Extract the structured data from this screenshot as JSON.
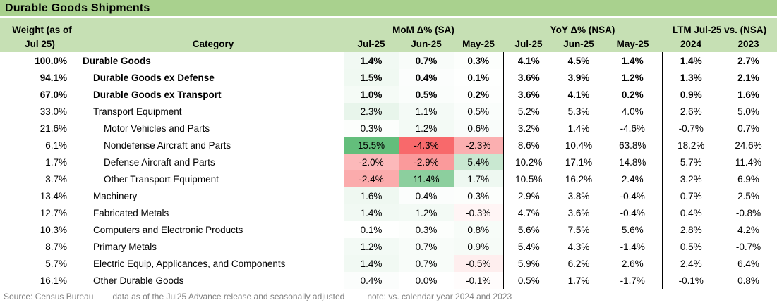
{
  "title": "Durable Goods Shipments",
  "colors": {
    "title_bg": "#A9D18E",
    "header_bg": "#C6E0B4",
    "footer_text": "#7F7F7F",
    "heat_max": "#63BE7B",
    "heat_mid": "#FFFFFF",
    "heat_min": "#F8696B"
  },
  "chart_data": {
    "type": "table",
    "title": "Durable Goods Shipments",
    "weight_header": [
      "Weight (as of",
      "Jul 25)"
    ],
    "category_header": "Category",
    "column_groups": [
      {
        "label": "MoM Δ% (SA)",
        "columns": [
          "Jul-25",
          "Jun-25",
          "May-25"
        ]
      },
      {
        "label": "YoY Δ% (NSA)",
        "columns": [
          "Jul-25",
          "Jun-25",
          "May-25"
        ]
      },
      {
        "label": "LTM Jul-25 vs. (NSA)",
        "columns": [
          "2024",
          "2023"
        ]
      }
    ],
    "heat_scale": {
      "applies_to": "MoM columns only",
      "min_value": -4.3,
      "max_value": 15.5,
      "min_color": "#F8696B",
      "mid_color": "#FFFFFF",
      "max_color": "#63BE7B"
    },
    "rows": [
      {
        "weight": "100.0%",
        "category": "Durable Goods",
        "indent": 0,
        "bold": true,
        "mom": [
          "1.4%",
          "0.7%",
          "0.3%"
        ],
        "yoy": [
          "4.1%",
          "4.5%",
          "1.4%"
        ],
        "ltm": [
          "1.4%",
          "2.7%"
        ]
      },
      {
        "weight": "94.1%",
        "category": "Durable Goods ex Defense",
        "indent": 1,
        "bold": true,
        "mom": [
          "1.5%",
          "0.4%",
          "0.1%"
        ],
        "yoy": [
          "3.6%",
          "3.9%",
          "1.2%"
        ],
        "ltm": [
          "1.3%",
          "2.1%"
        ]
      },
      {
        "weight": "67.0%",
        "category": "Durable Goods ex Transport",
        "indent": 1,
        "bold": true,
        "mom": [
          "1.0%",
          "0.5%",
          "0.2%"
        ],
        "yoy": [
          "3.6%",
          "4.1%",
          "0.2%"
        ],
        "ltm": [
          "0.9%",
          "1.6%"
        ]
      },
      {
        "weight": "33.0%",
        "category": "Transport Equipment",
        "indent": 1,
        "bold": false,
        "mom": [
          "2.3%",
          "1.1%",
          "0.5%"
        ],
        "yoy": [
          "5.2%",
          "5.3%",
          "4.0%"
        ],
        "ltm": [
          "2.6%",
          "5.0%"
        ]
      },
      {
        "weight": "21.6%",
        "category": "Motor Vehicles and Parts",
        "indent": 2,
        "bold": false,
        "mom": [
          "0.3%",
          "1.2%",
          "0.6%"
        ],
        "yoy": [
          "3.2%",
          "1.4%",
          "-4.6%"
        ],
        "ltm": [
          "-0.7%",
          "0.7%"
        ]
      },
      {
        "weight": "6.1%",
        "category": "Nondefense Aircraft and Parts",
        "indent": 2,
        "bold": false,
        "mom": [
          "15.5%",
          "-4.3%",
          "-2.3%"
        ],
        "yoy": [
          "8.6%",
          "10.4%",
          "63.8%"
        ],
        "ltm": [
          "18.2%",
          "24.6%"
        ]
      },
      {
        "weight": "1.7%",
        "category": "Defense Aircraft and Parts",
        "indent": 2,
        "bold": false,
        "mom": [
          "-2.0%",
          "-2.9%",
          "5.4%"
        ],
        "yoy": [
          "10.2%",
          "17.1%",
          "14.8%"
        ],
        "ltm": [
          "5.7%",
          "11.4%"
        ]
      },
      {
        "weight": "3.7%",
        "category": "Other Transport Equipment",
        "indent": 2,
        "bold": false,
        "mom": [
          "-2.4%",
          "11.4%",
          "1.7%"
        ],
        "yoy": [
          "10.5%",
          "16.2%",
          "2.4%"
        ],
        "ltm": [
          "3.2%",
          "6.9%"
        ]
      },
      {
        "weight": "13.4%",
        "category": "Machinery",
        "indent": 1,
        "bold": false,
        "mom": [
          "1.6%",
          "0.4%",
          "0.3%"
        ],
        "yoy": [
          "2.9%",
          "3.8%",
          "-0.4%"
        ],
        "ltm": [
          "0.7%",
          "2.5%"
        ]
      },
      {
        "weight": "12.7%",
        "category": "Fabricated Metals",
        "indent": 1,
        "bold": false,
        "mom": [
          "1.4%",
          "1.2%",
          "-0.3%"
        ],
        "yoy": [
          "4.7%",
          "3.6%",
          "-0.4%"
        ],
        "ltm": [
          "0.4%",
          "-0.8%"
        ]
      },
      {
        "weight": "10.3%",
        "category": "Computers and Electronic Products",
        "indent": 1,
        "bold": false,
        "mom": [
          "0.1%",
          "0.3%",
          "0.8%"
        ],
        "yoy": [
          "5.6%",
          "7.5%",
          "5.6%"
        ],
        "ltm": [
          "2.8%",
          "4.2%"
        ]
      },
      {
        "weight": "8.7%",
        "category": "Primary Metals",
        "indent": 1,
        "bold": false,
        "mom": [
          "1.2%",
          "0.7%",
          "0.9%"
        ],
        "yoy": [
          "5.4%",
          "4.3%",
          "-1.4%"
        ],
        "ltm": [
          "0.5%",
          "-0.7%"
        ]
      },
      {
        "weight": "5.7%",
        "category": "Electric Equip, Applicances, and Components",
        "indent": 1,
        "bold": false,
        "mom": [
          "1.4%",
          "0.7%",
          "-0.5%"
        ],
        "yoy": [
          "5.9%",
          "6.2%",
          "2.6%"
        ],
        "ltm": [
          "2.4%",
          "6.4%"
        ]
      },
      {
        "weight": "16.1%",
        "category": "Other Durable Goods",
        "indent": 1,
        "bold": false,
        "mom": [
          "0.4%",
          "0.0%",
          "-0.1%"
        ],
        "yoy": [
          "0.5%",
          "1.7%",
          "-1.7%"
        ],
        "ltm": [
          "-0.1%",
          "0.8%"
        ]
      }
    ]
  },
  "footer": {
    "source": "Source: Census Bureau",
    "data_note": "data as of the Jul25 Advance release and seasonally adjusted",
    "comparison_note": "note: vs. calendar year 2024 and 2023"
  }
}
